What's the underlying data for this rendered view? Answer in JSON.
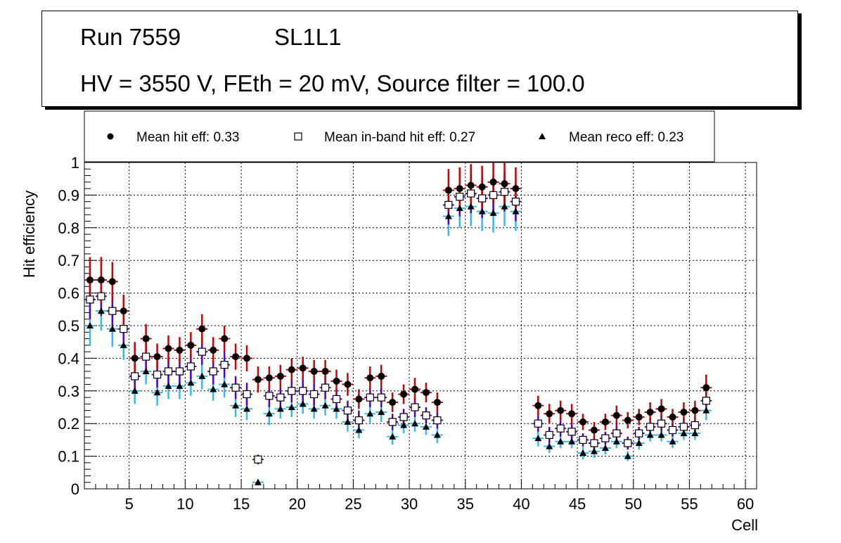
{
  "header": {
    "run": "Run 7559",
    "layer": "SL1L1",
    "conditions": "HV = 3550 V, FEth = 20 mV, Source filter = 100.0"
  },
  "legend": {
    "hit": "Mean hit  eff: 0.33",
    "inband": "Mean in-band hit eff: 0.27",
    "reco": "Mean reco eff: 0.23"
  },
  "colors": {
    "hit_error": "#cc0000",
    "inband_error": "#5500cc",
    "reco_error": "#33bbee"
  },
  "chart_data": {
    "type": "scatter",
    "xlabel": "Cell",
    "ylabel": "Hit efficiency",
    "xlim": [
      1,
      61
    ],
    "ylim": [
      0,
      1
    ],
    "grid": true,
    "legend_position": "top",
    "xticks": [
      5,
      10,
      15,
      20,
      25,
      30,
      35,
      40,
      45,
      50,
      55,
      60
    ],
    "yticks": [
      0,
      0.1,
      0.2,
      0.3,
      0.4,
      0.5,
      0.6,
      0.7,
      0.8,
      0.9,
      1
    ],
    "yticklabels": [
      "0",
      "0.1",
      "0.2",
      "0.3",
      "0.4",
      "0.5",
      "0.6",
      "0.7",
      "0.8",
      "0.9",
      "1"
    ],
    "series": [
      {
        "name": "Mean hit  eff: 0.33",
        "marker": "circle",
        "cells": [
          1,
          2,
          3,
          4,
          5,
          6,
          7,
          8,
          9,
          10,
          11,
          12,
          13,
          14,
          15,
          16,
          17,
          18,
          19,
          20,
          21,
          22,
          23,
          24,
          25,
          26,
          27,
          28,
          29,
          30,
          31,
          32,
          33,
          34,
          35,
          36,
          37,
          38,
          39,
          41,
          42,
          43,
          44,
          45,
          46,
          47,
          48,
          49,
          50,
          51,
          52,
          53,
          54,
          55,
          56
        ],
        "values": [
          0.64,
          0.64,
          0.635,
          0.545,
          0.4,
          0.46,
          0.405,
          0.43,
          0.425,
          0.44,
          0.49,
          0.425,
          0.46,
          0.405,
          0.4,
          0.335,
          0.34,
          0.345,
          0.365,
          0.37,
          0.36,
          0.36,
          0.33,
          0.32,
          0.275,
          0.34,
          0.345,
          0.265,
          0.29,
          0.305,
          0.295,
          0.265,
          0.915,
          0.92,
          0.93,
          0.925,
          0.94,
          0.935,
          0.92,
          0.255,
          0.23,
          0.24,
          0.23,
          0.205,
          0.18,
          0.205,
          0.225,
          0.21,
          0.22,
          0.235,
          0.245,
          0.22,
          0.235,
          0.24,
          0.31
        ],
        "errors": [
          0.07,
          0.07,
          0.06,
          0.05,
          0.05,
          0.045,
          0.04,
          0.04,
          0.04,
          0.04,
          0.045,
          0.04,
          0.04,
          0.04,
          0.04,
          0.04,
          0.035,
          0.035,
          0.035,
          0.035,
          0.035,
          0.035,
          0.035,
          0.035,
          0.03,
          0.035,
          0.035,
          0.03,
          0.03,
          0.035,
          0.03,
          0.03,
          0.065,
          0.065,
          0.065,
          0.065,
          0.065,
          0.065,
          0.065,
          0.03,
          0.03,
          0.03,
          0.03,
          0.025,
          0.025,
          0.025,
          0.03,
          0.025,
          0.025,
          0.03,
          0.03,
          0.025,
          0.03,
          0.03,
          0.04
        ]
      },
      {
        "name": "Mean in-band hit eff: 0.27",
        "marker": "open-square",
        "cells": [
          1,
          2,
          3,
          4,
          5,
          6,
          7,
          8,
          9,
          10,
          11,
          12,
          13,
          14,
          15,
          16,
          17,
          18,
          19,
          20,
          21,
          22,
          23,
          24,
          25,
          26,
          27,
          28,
          29,
          30,
          31,
          32,
          33,
          34,
          35,
          36,
          37,
          38,
          39,
          41,
          42,
          43,
          44,
          45,
          46,
          47,
          48,
          49,
          50,
          51,
          52,
          53,
          54,
          55,
          56
        ],
        "values": [
          0.58,
          0.59,
          0.545,
          0.49,
          0.345,
          0.405,
          0.35,
          0.36,
          0.36,
          0.375,
          0.42,
          0.36,
          0.38,
          0.31,
          0.29,
          0.09,
          0.285,
          0.28,
          0.3,
          0.3,
          0.29,
          0.31,
          0.275,
          0.24,
          0.21,
          0.28,
          0.28,
          0.205,
          0.22,
          0.25,
          0.225,
          0.21,
          0.87,
          0.895,
          0.905,
          0.89,
          0.9,
          0.91,
          0.88,
          0.2,
          0.165,
          0.185,
          0.175,
          0.15,
          0.14,
          0.155,
          0.17,
          0.14,
          0.17,
          0.19,
          0.2,
          0.18,
          0.19,
          0.195,
          0.27
        ],
        "errors": [
          0.06,
          0.06,
          0.055,
          0.045,
          0.045,
          0.04,
          0.04,
          0.04,
          0.04,
          0.04,
          0.04,
          0.04,
          0.04,
          0.035,
          0.035,
          0.015,
          0.035,
          0.035,
          0.035,
          0.035,
          0.035,
          0.035,
          0.03,
          0.03,
          0.03,
          0.03,
          0.03,
          0.025,
          0.025,
          0.03,
          0.025,
          0.025,
          0.06,
          0.06,
          0.06,
          0.06,
          0.06,
          0.06,
          0.06,
          0.025,
          0.025,
          0.025,
          0.025,
          0.02,
          0.02,
          0.02,
          0.025,
          0.02,
          0.02,
          0.025,
          0.025,
          0.02,
          0.025,
          0.025,
          0.03
        ]
      },
      {
        "name": "Mean reco eff: 0.23",
        "marker": "triangle",
        "cells": [
          1,
          2,
          3,
          4,
          5,
          6,
          7,
          8,
          9,
          10,
          11,
          12,
          13,
          14,
          15,
          16,
          17,
          18,
          19,
          20,
          21,
          22,
          23,
          24,
          25,
          26,
          27,
          28,
          29,
          30,
          31,
          32,
          33,
          34,
          35,
          36,
          37,
          38,
          39,
          41,
          42,
          43,
          44,
          45,
          46,
          47,
          48,
          49,
          50,
          51,
          52,
          53,
          54,
          55,
          56
        ],
        "values": [
          0.5,
          0.545,
          0.49,
          0.44,
          0.3,
          0.36,
          0.295,
          0.315,
          0.315,
          0.325,
          0.345,
          0.305,
          0.32,
          0.255,
          0.245,
          0.02,
          0.23,
          0.245,
          0.25,
          0.26,
          0.245,
          0.255,
          0.245,
          0.205,
          0.18,
          0.23,
          0.235,
          0.16,
          0.195,
          0.2,
          0.19,
          0.165,
          0.835,
          0.86,
          0.865,
          0.85,
          0.845,
          0.865,
          0.85,
          0.155,
          0.13,
          0.145,
          0.145,
          0.11,
          0.115,
          0.125,
          0.145,
          0.1,
          0.14,
          0.165,
          0.165,
          0.145,
          0.17,
          0.17,
          0.24
        ],
        "errors": [
          0.06,
          0.06,
          0.055,
          0.045,
          0.04,
          0.04,
          0.04,
          0.04,
          0.04,
          0.04,
          0.04,
          0.035,
          0.04,
          0.035,
          0.035,
          0.01,
          0.035,
          0.03,
          0.03,
          0.03,
          0.03,
          0.03,
          0.03,
          0.03,
          0.025,
          0.03,
          0.03,
          0.025,
          0.025,
          0.025,
          0.025,
          0.025,
          0.06,
          0.06,
          0.06,
          0.06,
          0.06,
          0.06,
          0.06,
          0.025,
          0.02,
          0.02,
          0.02,
          0.02,
          0.02,
          0.02,
          0.02,
          0.015,
          0.02,
          0.02,
          0.02,
          0.02,
          0.02,
          0.02,
          0.03
        ]
      }
    ]
  }
}
